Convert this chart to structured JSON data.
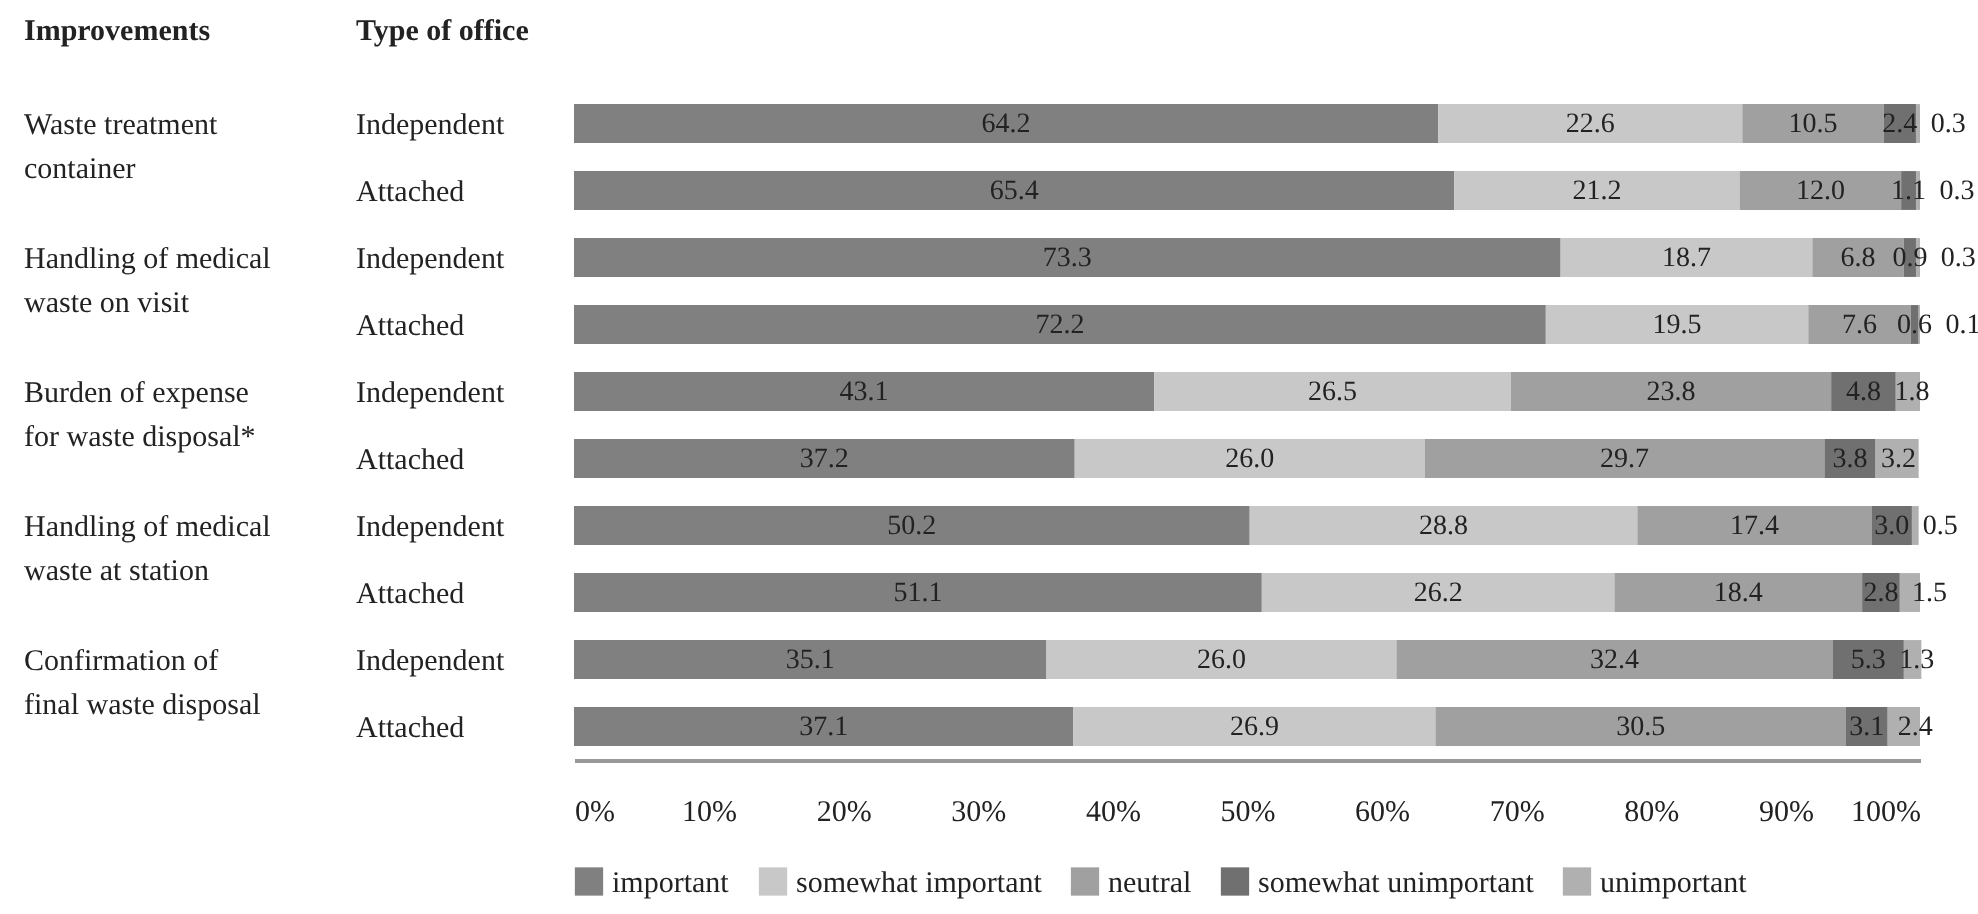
{
  "chart_data": {
    "type": "bar",
    "orientation": "horizontal",
    "stacked": true,
    "legend": "bottom",
    "grid": false,
    "categories": [
      "Independent",
      "Attached",
      "Independent",
      "Attached",
      "Independent",
      "Attached",
      "Independent",
      "Attached",
      "Independent",
      "Attached"
    ],
    "annotations": [
      "Improvements",
      "Type of office",
      "Waste treatment\ncontainer",
      "Handling of medical\nwaste on visit",
      "Burden of expense\nfor waste disposal*",
      "Handling of medical\nwaste at station",
      "Confirmation of\nfinal waste disposal"
    ],
    "xlim": [
      0,
      100
    ],
    "xticks": [
      {
        "value": 0,
        "label": "0%"
      },
      {
        "value": 10,
        "label": "10%"
      },
      {
        "value": 20,
        "label": "20%"
      },
      {
        "value": 30,
        "label": "30%"
      },
      {
        "value": 40,
        "label": "40%"
      },
      {
        "value": 50,
        "label": "50%"
      },
      {
        "value": 60,
        "label": "60%"
      },
      {
        "value": 70,
        "label": "70%"
      },
      {
        "value": 80,
        "label": "80%"
      },
      {
        "value": 90,
        "label": "90%"
      },
      {
        "value": 100,
        "label": "100%"
      }
    ],
    "series": [
      {
        "name": "important",
        "color": "#808080",
        "values": [
          64.2,
          65.4,
          73.3,
          72.2,
          43.1,
          37.2,
          50.2,
          51.1,
          35.1,
          37.1
        ],
        "value_labels": [
          "64.2",
          "65.4",
          "73.3",
          "72.2",
          "43.1",
          "37.2",
          "50.2",
          "51.1",
          "35.1",
          "37.1"
        ]
      },
      {
        "name": "somewhat important",
        "color": "#c8c8c8",
        "values": [
          22.6,
          21.2,
          18.7,
          19.5,
          26.5,
          26.0,
          28.8,
          26.2,
          26.0,
          26.9
        ],
        "value_labels": [
          "22.6",
          "21.2",
          "18.7",
          "19.5",
          "26.5",
          "26.0",
          "28.8",
          "26.2",
          "26.0",
          "26.9"
        ]
      },
      {
        "name": "neutral",
        "color": "#a0a0a0",
        "values": [
          10.5,
          12.0,
          6.8,
          7.6,
          23.8,
          29.7,
          17.4,
          18.4,
          32.4,
          30.5
        ],
        "value_labels": [
          "10.5",
          "12.0",
          "6.8",
          "7.6",
          "23.8",
          "29.7",
          "17.4",
          "18.4",
          "32.4",
          "30.5"
        ]
      },
      {
        "name": "somewhat unimportant",
        "color": "#707070",
        "values": [
          2.4,
          1.1,
          0.9,
          0.6,
          4.8,
          3.8,
          3.0,
          2.8,
          5.3,
          3.1
        ],
        "value_labels": [
          "2.4",
          "1.1",
          "0.9",
          "0.6",
          "4.8",
          "3.8",
          "3.0",
          "2.8",
          "5.3",
          "3.1"
        ]
      },
      {
        "name": "unimportant",
        "color": "#b0b0b0",
        "values": [
          0.3,
          0.3,
          0.3,
          0.1,
          1.8,
          3.2,
          0.5,
          1.5,
          1.3,
          2.4
        ],
        "value_labels": [
          "0.3",
          "0.3",
          "0.3",
          "0.1",
          "1.8",
          "3.2",
          "0.5",
          "1.5",
          "1.3",
          "2.4"
        ]
      }
    ]
  }
}
